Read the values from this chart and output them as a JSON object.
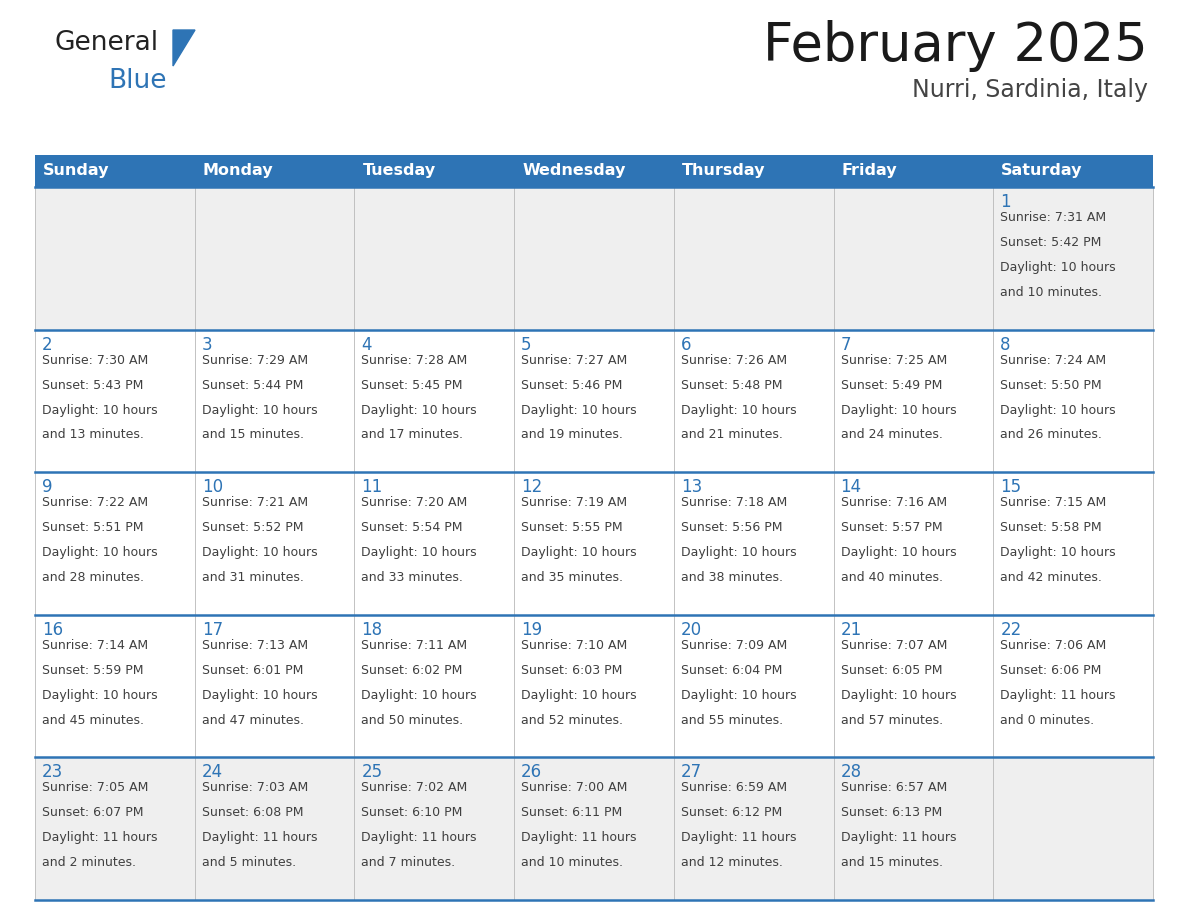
{
  "title": "February 2025",
  "subtitle": "Nurri, Sardinia, Italy",
  "header_bg": "#2E74B5",
  "header_text_color": "#FFFFFF",
  "weekdays": [
    "Sunday",
    "Monday",
    "Tuesday",
    "Wednesday",
    "Thursday",
    "Friday",
    "Saturday"
  ],
  "row1_bg": "#EFEFEF",
  "row_bg": "#FFFFFF",
  "row_last_bg": "#EFEFEF",
  "separator_color": "#2E74B5",
  "day_number_color": "#2E74B5",
  "info_color": "#404040",
  "border_color": "#AAAAAA",
  "logo_text_color": "#222222",
  "logo_blue_color": "#2E74B5",
  "triangle_color": "#2E74B5",
  "calendar": [
    [
      {
        "day": null,
        "sunrise": null,
        "sunset": null,
        "daylight": null
      },
      {
        "day": null,
        "sunrise": null,
        "sunset": null,
        "daylight": null
      },
      {
        "day": null,
        "sunrise": null,
        "sunset": null,
        "daylight": null
      },
      {
        "day": null,
        "sunrise": null,
        "sunset": null,
        "daylight": null
      },
      {
        "day": null,
        "sunrise": null,
        "sunset": null,
        "daylight": null
      },
      {
        "day": null,
        "sunrise": null,
        "sunset": null,
        "daylight": null
      },
      {
        "day": 1,
        "sunrise": "7:31 AM",
        "sunset": "5:42 PM",
        "daylight": "10 hours\nand 10 minutes."
      }
    ],
    [
      {
        "day": 2,
        "sunrise": "7:30 AM",
        "sunset": "5:43 PM",
        "daylight": "10 hours\nand 13 minutes."
      },
      {
        "day": 3,
        "sunrise": "7:29 AM",
        "sunset": "5:44 PM",
        "daylight": "10 hours\nand 15 minutes."
      },
      {
        "day": 4,
        "sunrise": "7:28 AM",
        "sunset": "5:45 PM",
        "daylight": "10 hours\nand 17 minutes."
      },
      {
        "day": 5,
        "sunrise": "7:27 AM",
        "sunset": "5:46 PM",
        "daylight": "10 hours\nand 19 minutes."
      },
      {
        "day": 6,
        "sunrise": "7:26 AM",
        "sunset": "5:48 PM",
        "daylight": "10 hours\nand 21 minutes."
      },
      {
        "day": 7,
        "sunrise": "7:25 AM",
        "sunset": "5:49 PM",
        "daylight": "10 hours\nand 24 minutes."
      },
      {
        "day": 8,
        "sunrise": "7:24 AM",
        "sunset": "5:50 PM",
        "daylight": "10 hours\nand 26 minutes."
      }
    ],
    [
      {
        "day": 9,
        "sunrise": "7:22 AM",
        "sunset": "5:51 PM",
        "daylight": "10 hours\nand 28 minutes."
      },
      {
        "day": 10,
        "sunrise": "7:21 AM",
        "sunset": "5:52 PM",
        "daylight": "10 hours\nand 31 minutes."
      },
      {
        "day": 11,
        "sunrise": "7:20 AM",
        "sunset": "5:54 PM",
        "daylight": "10 hours\nand 33 minutes."
      },
      {
        "day": 12,
        "sunrise": "7:19 AM",
        "sunset": "5:55 PM",
        "daylight": "10 hours\nand 35 minutes."
      },
      {
        "day": 13,
        "sunrise": "7:18 AM",
        "sunset": "5:56 PM",
        "daylight": "10 hours\nand 38 minutes."
      },
      {
        "day": 14,
        "sunrise": "7:16 AM",
        "sunset": "5:57 PM",
        "daylight": "10 hours\nand 40 minutes."
      },
      {
        "day": 15,
        "sunrise": "7:15 AM",
        "sunset": "5:58 PM",
        "daylight": "10 hours\nand 42 minutes."
      }
    ],
    [
      {
        "day": 16,
        "sunrise": "7:14 AM",
        "sunset": "5:59 PM",
        "daylight": "10 hours\nand 45 minutes."
      },
      {
        "day": 17,
        "sunrise": "7:13 AM",
        "sunset": "6:01 PM",
        "daylight": "10 hours\nand 47 minutes."
      },
      {
        "day": 18,
        "sunrise": "7:11 AM",
        "sunset": "6:02 PM",
        "daylight": "10 hours\nand 50 minutes."
      },
      {
        "day": 19,
        "sunrise": "7:10 AM",
        "sunset": "6:03 PM",
        "daylight": "10 hours\nand 52 minutes."
      },
      {
        "day": 20,
        "sunrise": "7:09 AM",
        "sunset": "6:04 PM",
        "daylight": "10 hours\nand 55 minutes."
      },
      {
        "day": 21,
        "sunrise": "7:07 AM",
        "sunset": "6:05 PM",
        "daylight": "10 hours\nand 57 minutes."
      },
      {
        "day": 22,
        "sunrise": "7:06 AM",
        "sunset": "6:06 PM",
        "daylight": "11 hours\nand 0 minutes."
      }
    ],
    [
      {
        "day": 23,
        "sunrise": "7:05 AM",
        "sunset": "6:07 PM",
        "daylight": "11 hours\nand 2 minutes."
      },
      {
        "day": 24,
        "sunrise": "7:03 AM",
        "sunset": "6:08 PM",
        "daylight": "11 hours\nand 5 minutes."
      },
      {
        "day": 25,
        "sunrise": "7:02 AM",
        "sunset": "6:10 PM",
        "daylight": "11 hours\nand 7 minutes."
      },
      {
        "day": 26,
        "sunrise": "7:00 AM",
        "sunset": "6:11 PM",
        "daylight": "11 hours\nand 10 minutes."
      },
      {
        "day": 27,
        "sunrise": "6:59 AM",
        "sunset": "6:12 PM",
        "daylight": "11 hours\nand 12 minutes."
      },
      {
        "day": 28,
        "sunrise": "6:57 AM",
        "sunset": "6:13 PM",
        "daylight": "11 hours\nand 15 minutes."
      },
      {
        "day": null,
        "sunrise": null,
        "sunset": null,
        "daylight": null
      }
    ]
  ]
}
